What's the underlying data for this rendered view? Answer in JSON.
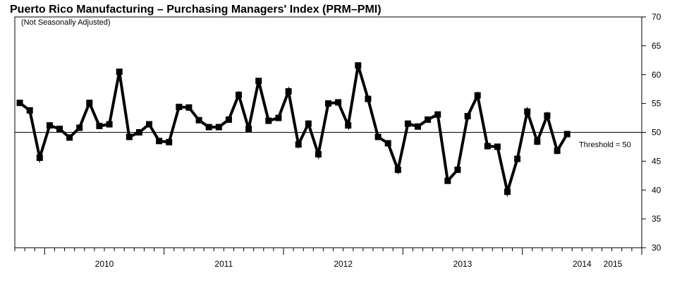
{
  "chart_data": {
    "type": "line",
    "title": "Puerto Rico Manufacturing – Purchasing Managers' Index (PRM–PMI)",
    "subtitle": "(Not Seasonally Adjusted)",
    "xlabel": "",
    "ylabel": "",
    "ylim": [
      30,
      70
    ],
    "yticks": [
      30,
      35,
      40,
      45,
      50,
      55,
      60,
      65,
      70
    ],
    "x_start": "2009-10",
    "year_labels": [
      "2010",
      "2011",
      "2012",
      "2013",
      "2014",
      "2015"
    ],
    "series": [
      {
        "values": [
          55.1,
          53.8,
          45.6,
          51.2,
          50.6,
          49.1,
          50.8,
          55.1,
          51.1,
          51.4,
          60.5,
          49.2,
          50.0,
          51.4,
          48.5,
          48.3,
          54.4,
          54.3,
          52.1,
          50.9,
          50.9,
          52.2,
          56.5,
          50.6,
          58.9,
          52.0,
          52.5,
          57.1,
          47.9,
          51.5,
          46.2,
          55.0,
          55.2,
          51.2,
          61.6,
          55.8,
          49.2,
          48.1,
          43.5,
          51.5,
          51.0,
          52.2,
          53.1,
          41.6,
          43.5,
          52.8,
          56.4,
          47.6,
          47.5,
          39.7,
          45.4,
          53.6,
          48.4,
          52.9,
          46.8,
          49.7
        ]
      }
    ],
    "threshold": {
      "value": 50,
      "label": "Threshold = 50"
    }
  }
}
